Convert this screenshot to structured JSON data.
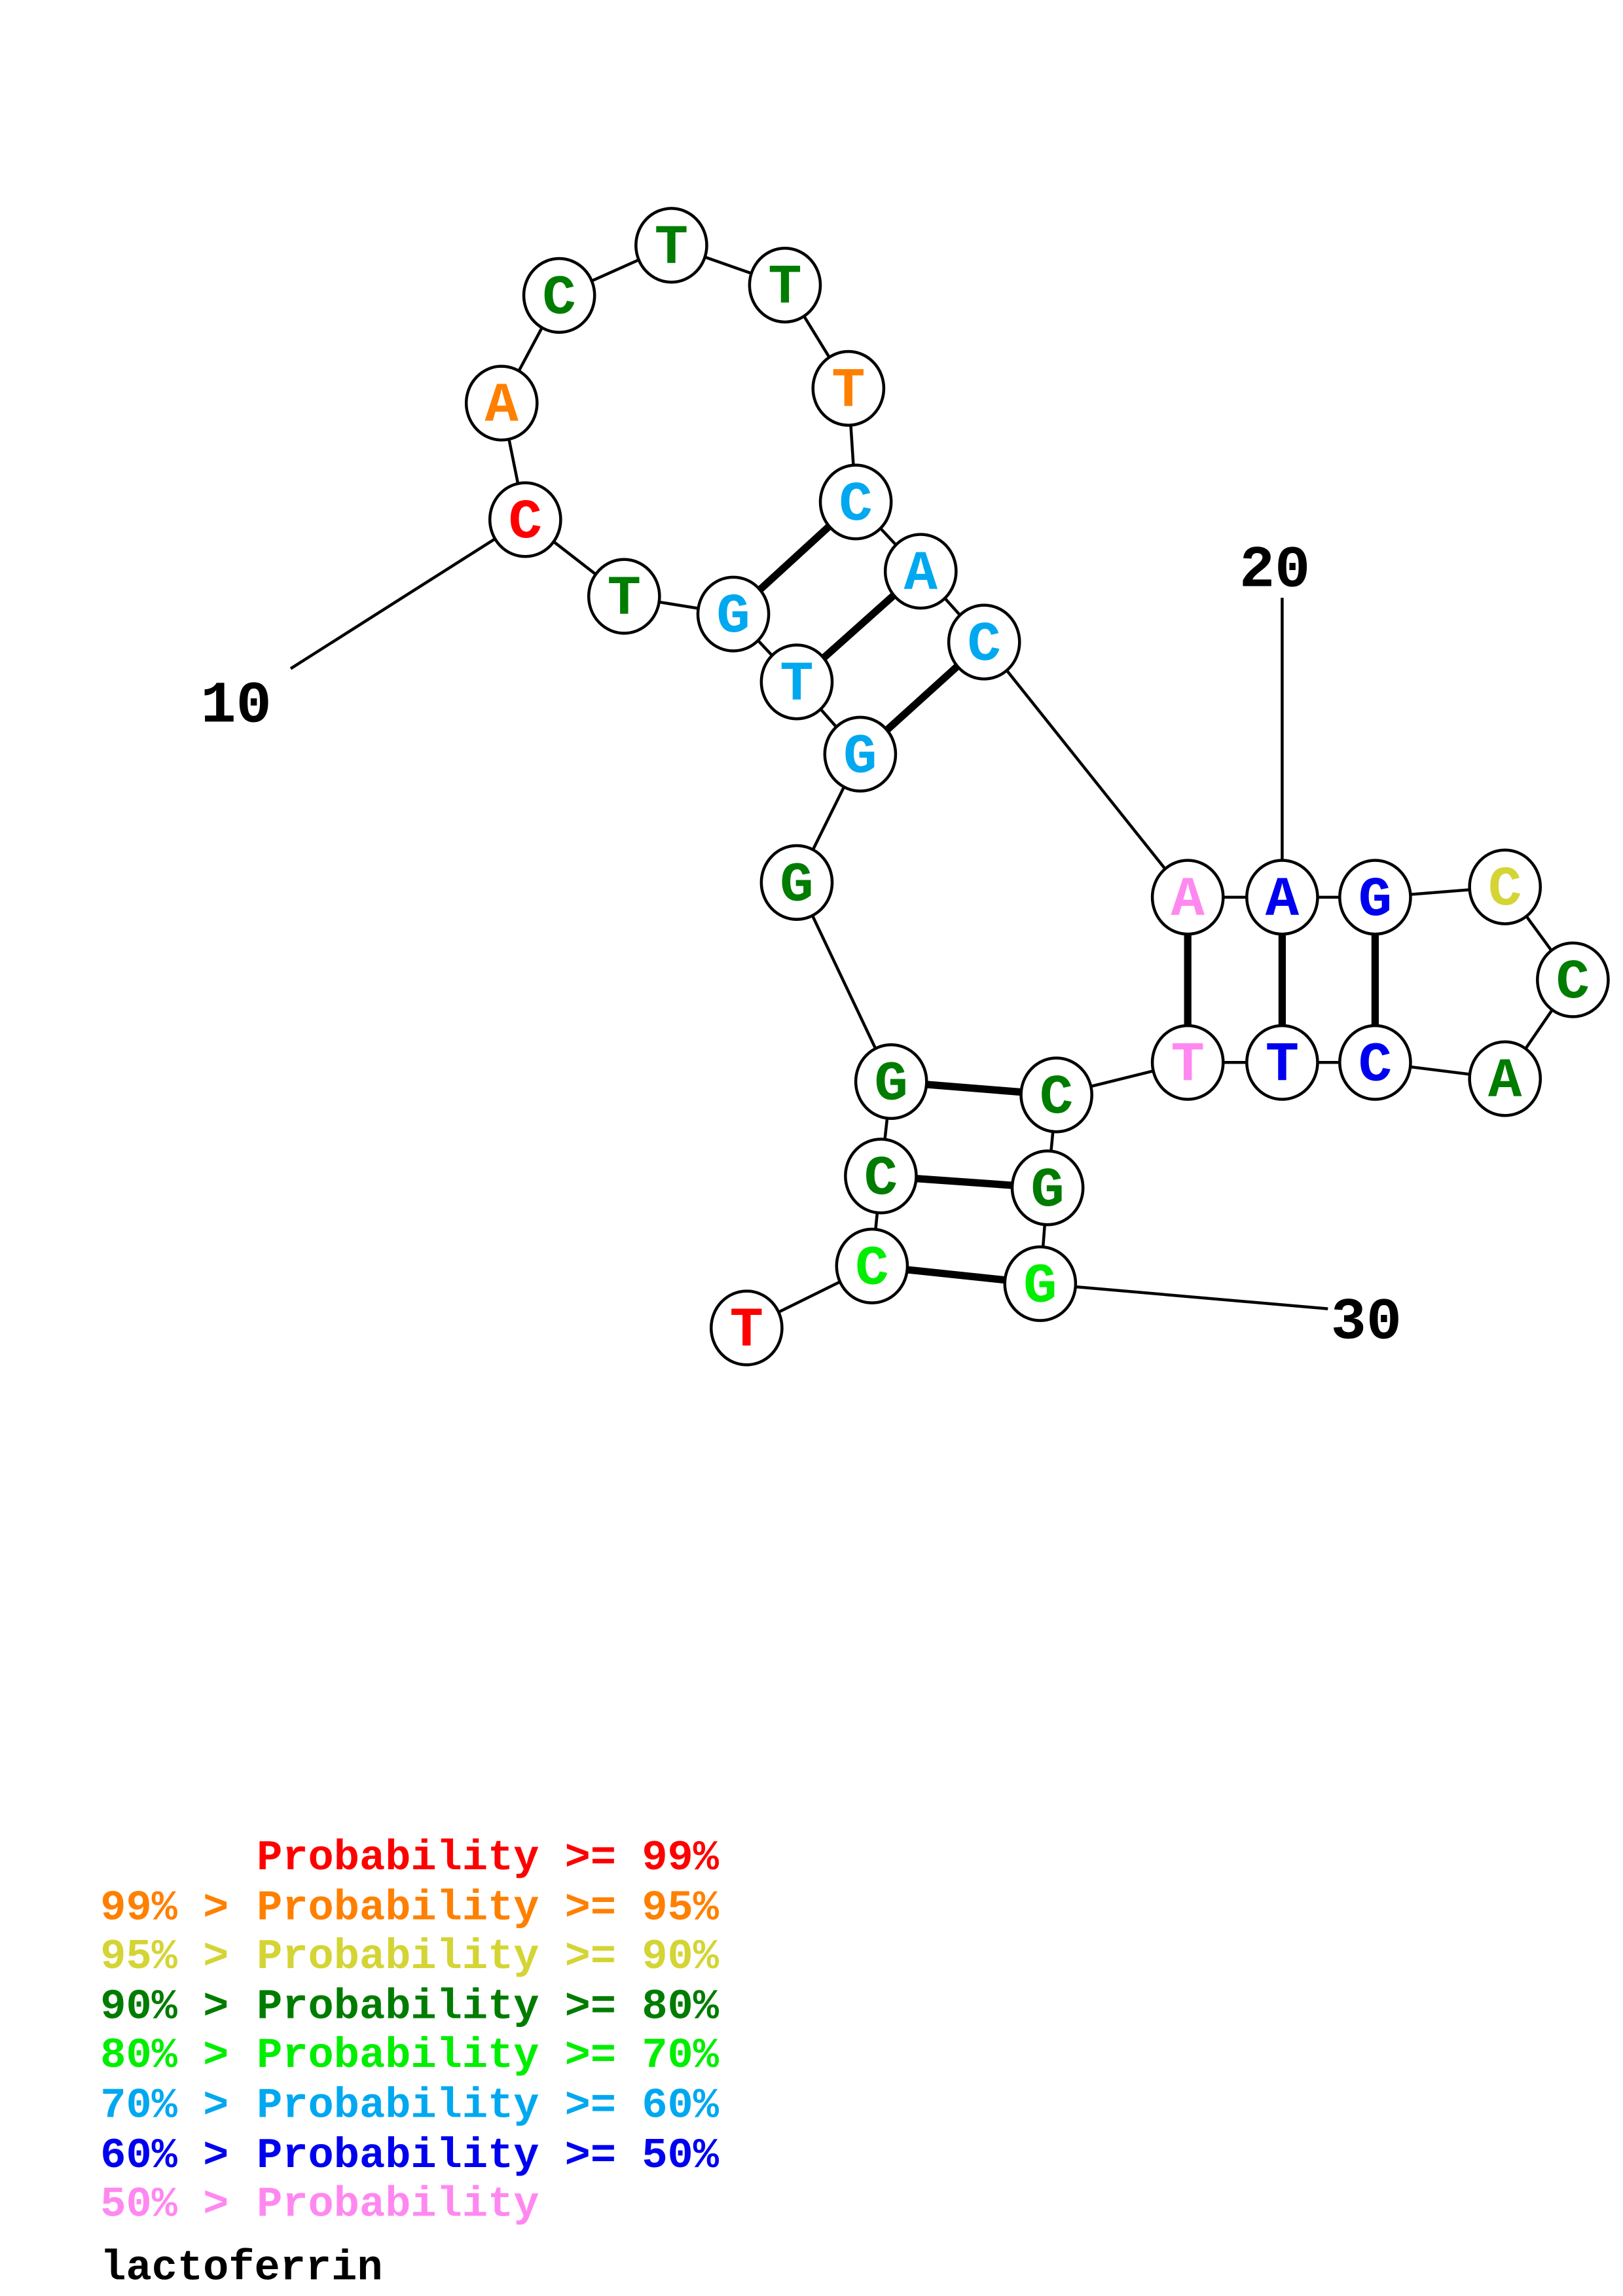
{
  "title": "lactoferrin",
  "colors": {
    "p99": "#ff0000",
    "p95": "#ff8000",
    "p90": "#d4d435",
    "p80": "#007c00",
    "p70": "#00ee00",
    "p60": "#00a8f0",
    "p50": "#0000f0",
    "plow": "#ff88f0"
  },
  "sequence": [
    {
      "base": "T",
      "prob": "p99"
    },
    {
      "base": "C",
      "prob": "p70"
    },
    {
      "base": "C",
      "prob": "p80"
    },
    {
      "base": "G",
      "prob": "p80"
    },
    {
      "base": "G",
      "prob": "p80"
    },
    {
      "base": "G",
      "prob": "p60"
    },
    {
      "base": "T",
      "prob": "p60"
    },
    {
      "base": "G",
      "prob": "p60"
    },
    {
      "base": "T",
      "prob": "p80"
    },
    {
      "base": "C",
      "prob": "p99"
    },
    {
      "base": "A",
      "prob": "p95"
    },
    {
      "base": "C",
      "prob": "p80"
    },
    {
      "base": "T",
      "prob": "p80"
    },
    {
      "base": "T",
      "prob": "p80"
    },
    {
      "base": "T",
      "prob": "p95"
    },
    {
      "base": "C",
      "prob": "p60"
    },
    {
      "base": "A",
      "prob": "p60"
    },
    {
      "base": "C",
      "prob": "p60"
    },
    {
      "base": "A",
      "prob": "plow"
    },
    {
      "base": "A",
      "prob": "p50"
    },
    {
      "base": "G",
      "prob": "p50"
    },
    {
      "base": "C",
      "prob": "p90"
    },
    {
      "base": "C",
      "prob": "p80"
    },
    {
      "base": "A",
      "prob": "p80"
    },
    {
      "base": "C",
      "prob": "p50"
    },
    {
      "base": "T",
      "prob": "p50"
    },
    {
      "base": "T",
      "prob": "plow"
    },
    {
      "base": "C",
      "prob": "p80"
    },
    {
      "base": "G",
      "prob": "p80"
    },
    {
      "base": "G",
      "prob": "p70"
    }
  ],
  "pairs": [
    [
      2,
      30
    ],
    [
      3,
      29
    ],
    [
      4,
      28
    ],
    [
      6,
      18
    ],
    [
      7,
      17
    ],
    [
      8,
      16
    ],
    [
      19,
      27
    ],
    [
      20,
      26
    ],
    [
      21,
      25
    ]
  ],
  "position_labels": [
    "10",
    "20",
    "30"
  ],
  "legend": [
    {
      "prefix": "",
      "text": "Probability >= 99%",
      "color": "p99"
    },
    {
      "prefix": "99% > ",
      "text": "Probability >= 95%",
      "color": "p95"
    },
    {
      "prefix": "95% > ",
      "text": "Probability >= 90%",
      "color": "p90"
    },
    {
      "prefix": "90% > ",
      "text": "Probability >= 80%",
      "color": "p80"
    },
    {
      "prefix": "80% > ",
      "text": "Probability >= 70%",
      "color": "p70"
    },
    {
      "prefix": "70% > ",
      "text": "Probability >= 60%",
      "color": "p60"
    },
    {
      "prefix": "60% > ",
      "text": "Probability >= 50%",
      "color": "p50"
    },
    {
      "prefix": "50% > ",
      "text": "Probability",
      "color": "plow"
    }
  ]
}
